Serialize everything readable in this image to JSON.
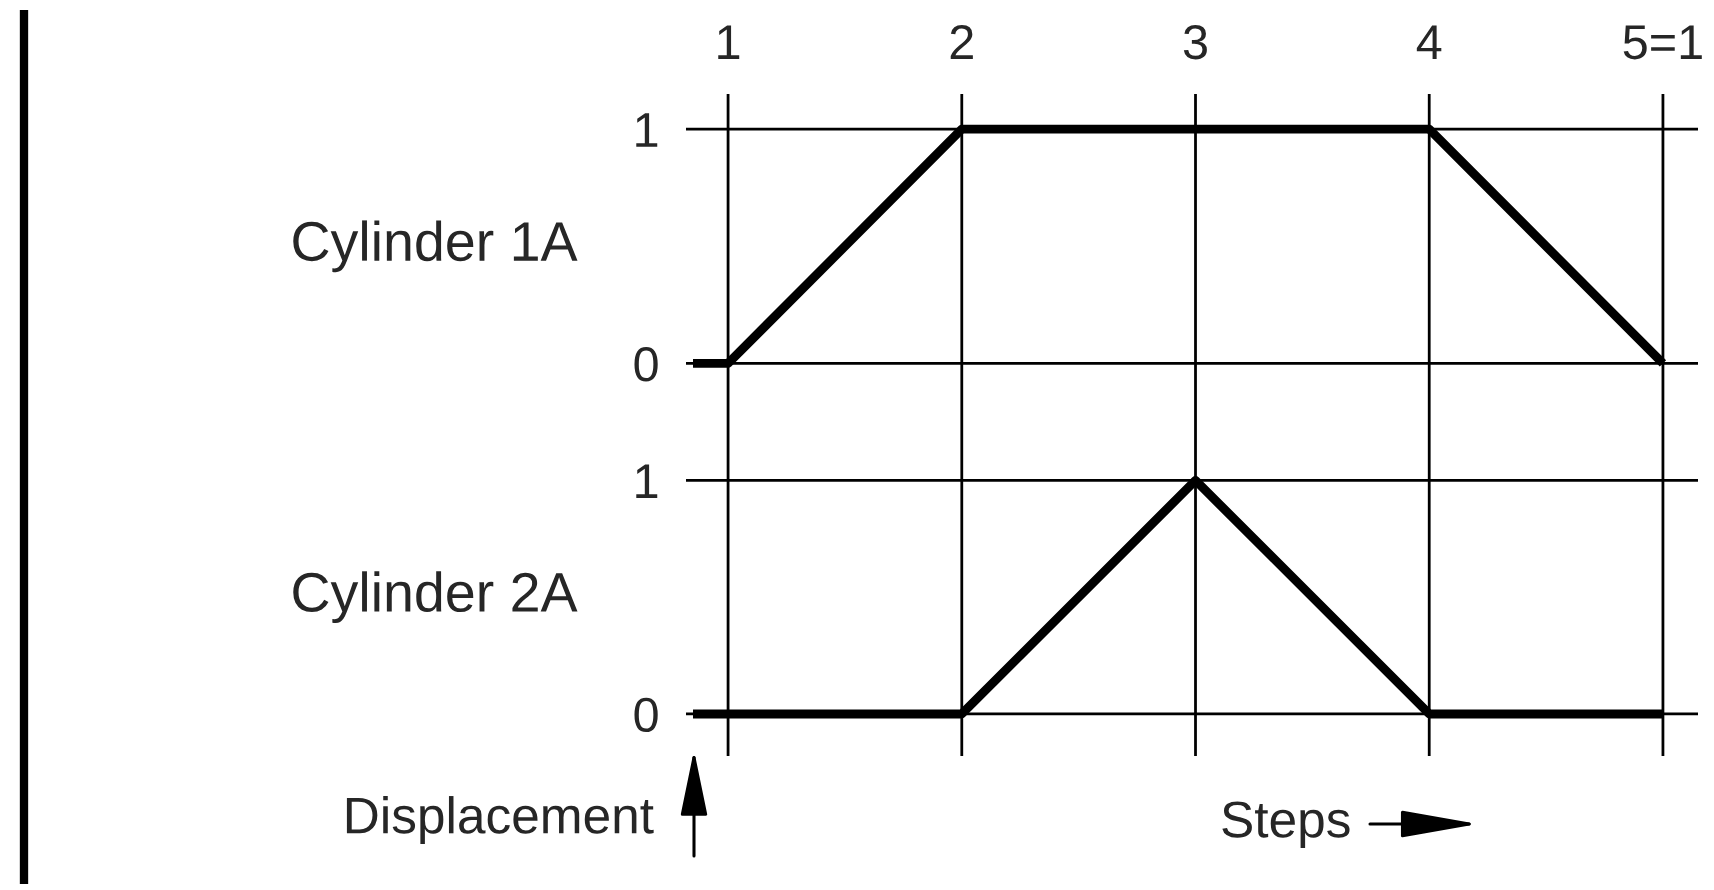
{
  "chart_data": [
    {
      "type": "line",
      "ylabel": "Cylinder 1A",
      "series": [
        {
          "color": "#000000",
          "x": [
            0.85,
            1,
            2,
            4,
            5
          ],
          "values": [
            0,
            0,
            1,
            1,
            0
          ]
        }
      ],
      "xlim": [
        0.82,
        5.15
      ],
      "xticks": [
        1,
        2,
        3,
        4,
        {
          "value": 5,
          "label": "5=1"
        }
      ],
      "ylim": [
        -0.25,
        1.15
      ],
      "yticks": [
        0,
        1
      ],
      "grid": true
    },
    {
      "type": "line",
      "ylabel": "Cylinder 2A",
      "xlabel": "Steps",
      "annotations": [
        "Displacement"
      ],
      "series": [
        {
          "color": "#000000",
          "x": [
            0.85,
            2,
            3,
            4,
            5
          ],
          "values": [
            0,
            0,
            1,
            0,
            0
          ]
        }
      ],
      "xlim": [
        0.82,
        5.15
      ],
      "xticks": [
        1,
        2,
        3,
        4,
        5
      ],
      "ylim": [
        -0.18,
        1.25
      ],
      "yticks": [
        0,
        1
      ],
      "grid": true,
      "tick_labels": "y"
    }
  ]
}
